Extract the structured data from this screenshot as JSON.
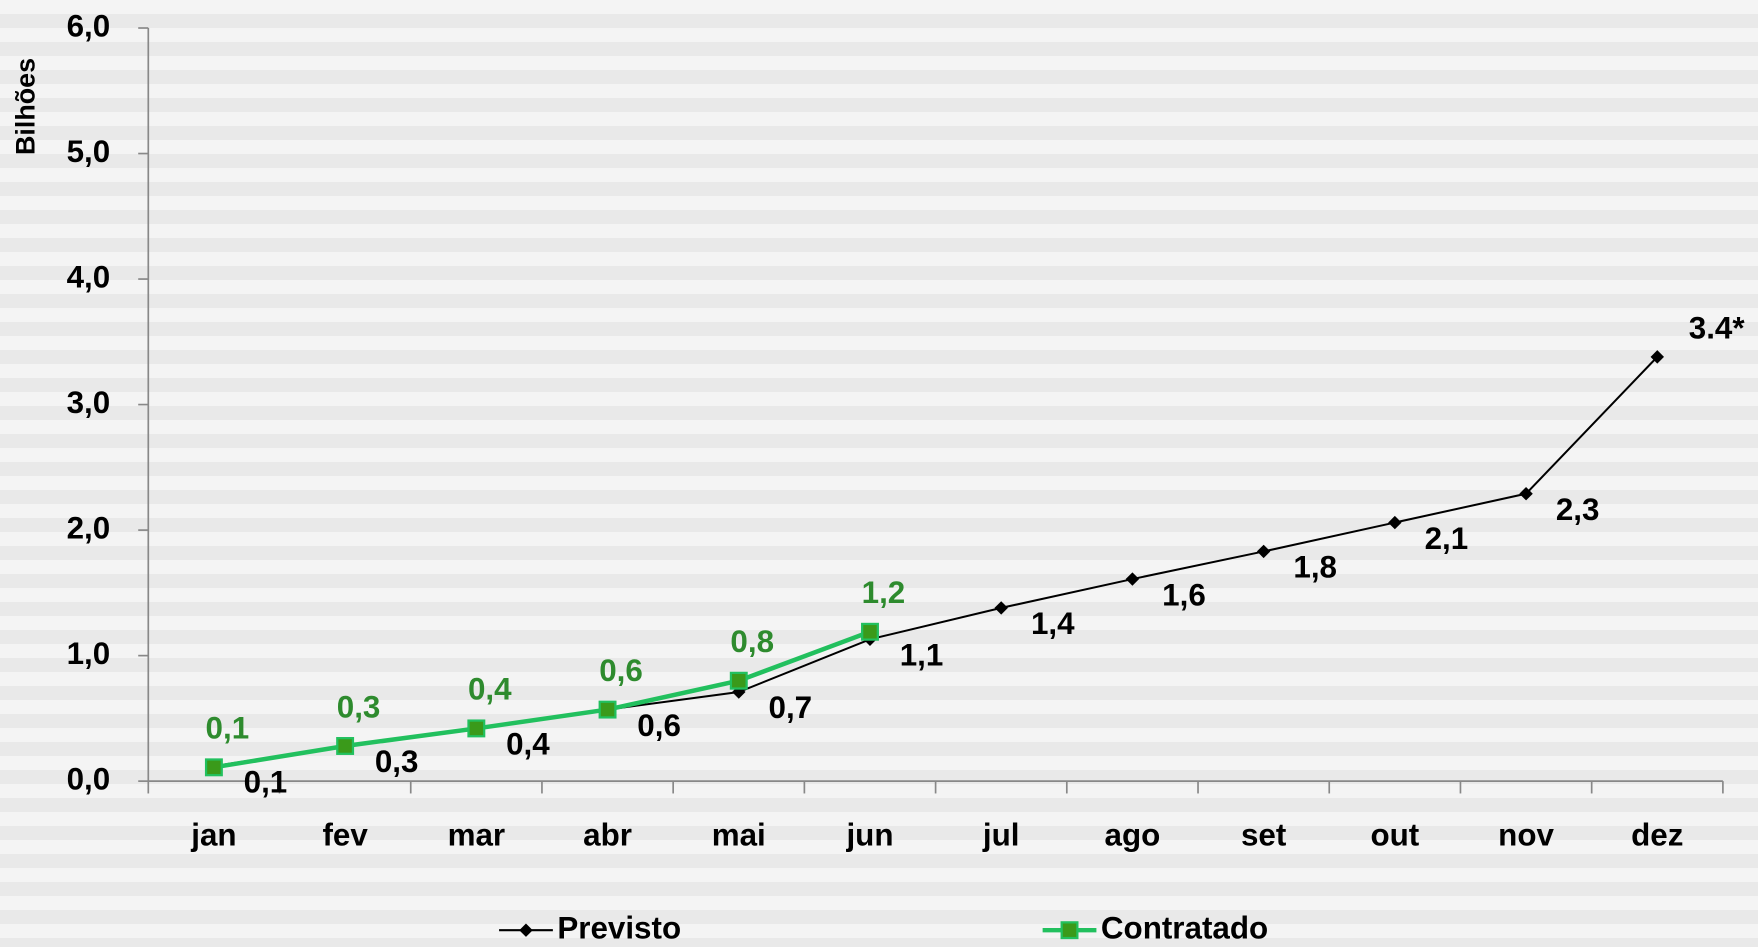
{
  "chart_data": {
    "type": "line",
    "y_label": "Bilhões",
    "categories": [
      "jan",
      "fev",
      "mar",
      "abr",
      "mai",
      "jun",
      "jul",
      "ago",
      "set",
      "out",
      "nov",
      "dez"
    ],
    "series": [
      {
        "name": "Previsto",
        "color": "#000000",
        "values": [
          0.12,
          0.28,
          0.42,
          0.57,
          0.71,
          1.13,
          1.38,
          1.61,
          1.83,
          2.06,
          2.29,
          3.38
        ],
        "value_labels": [
          "0,1",
          "0,3",
          "0,4",
          "0,6",
          "0,7",
          "1,1",
          "1,4",
          "1,6",
          "1,8",
          "2,1",
          "2,3",
          "3.4*"
        ]
      },
      {
        "name": "Contratado",
        "color": "#22c05e",
        "marker_color": "#3a9a1a",
        "label_color": "#2e8b2e",
        "values": [
          0.11,
          0.28,
          0.42,
          0.57,
          0.8,
          1.19,
          null,
          null,
          null,
          null,
          null,
          null
        ],
        "value_labels": [
          "0,1",
          "0,3",
          "0,4",
          "0,6",
          "0,8",
          "1,2",
          null,
          null,
          null,
          null,
          null,
          null
        ]
      }
    ],
    "ylim": [
      0,
      6
    ],
    "yticks": [
      {
        "value": 0,
        "label": "0,0"
      },
      {
        "value": 1,
        "label": "1,0"
      },
      {
        "value": 2,
        "label": "2,0"
      },
      {
        "value": 3,
        "label": "3,0"
      },
      {
        "value": 4,
        "label": "4,0"
      },
      {
        "value": 5,
        "label": "5,0"
      },
      {
        "value": 6,
        "label": "6,0"
      }
    ],
    "legend": "bottom"
  }
}
